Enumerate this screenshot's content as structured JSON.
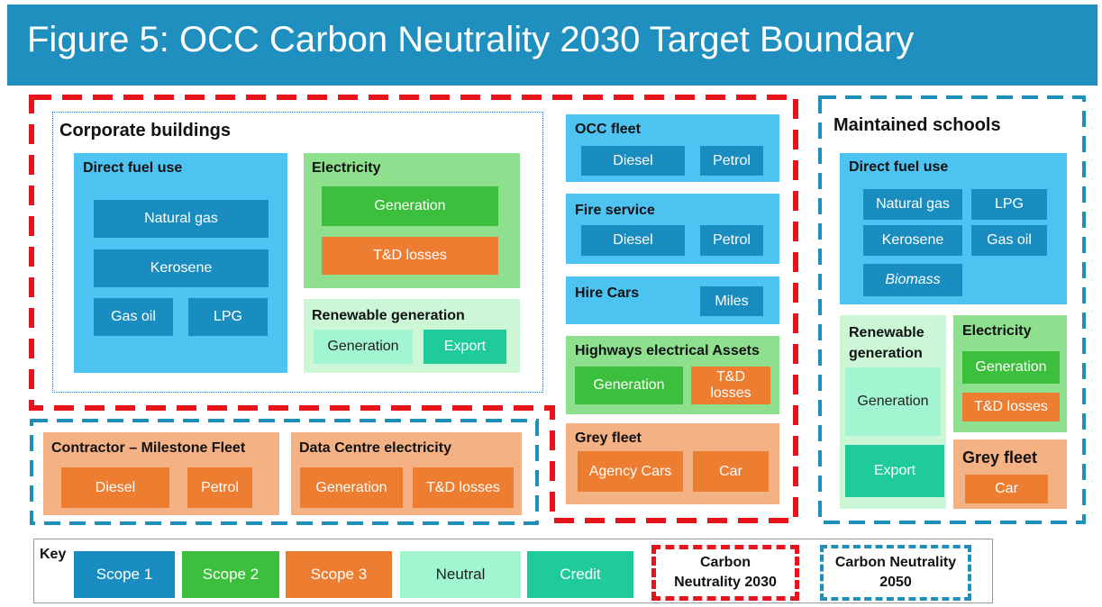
{
  "header": {
    "title": "Figure 5: OCC  Carbon Neutrality 2030 Target Boundary"
  },
  "corporate_buildings": {
    "title": "Corporate buildings",
    "direct_fuel_use": {
      "title": "Direct fuel use",
      "items": [
        "Natural gas",
        "Kerosene",
        "Gas oil",
        "LPG"
      ]
    },
    "electricity": {
      "title": "Electricity",
      "items": [
        "Generation",
        "T&D losses"
      ]
    },
    "renewable_generation": {
      "title": "Renewable generation",
      "items": [
        "Generation",
        "Export"
      ]
    }
  },
  "occ_fleet": {
    "title": "OCC fleet",
    "items": [
      "Diesel",
      "Petrol"
    ]
  },
  "fire_service": {
    "title": "Fire service",
    "items": [
      "Diesel",
      "Petrol"
    ]
  },
  "hire_cars": {
    "title": "Hire Cars",
    "items": [
      "Miles"
    ]
  },
  "highways_electrical_assets": {
    "title": "Highways electrical Assets",
    "items": [
      "Generation",
      "T&D losses"
    ]
  },
  "grey_fleet": {
    "title": "Grey fleet",
    "items": [
      "Agency Cars",
      "Car"
    ]
  },
  "contractor_fleet": {
    "title": "Contractor – Milestone Fleet",
    "items": [
      "Diesel",
      "Petrol"
    ]
  },
  "data_centre": {
    "title": "Data Centre electricity",
    "items": [
      "Generation",
      "T&D losses"
    ]
  },
  "maintained_schools": {
    "title": "Maintained schools",
    "direct_fuel_use": {
      "title": "Direct fuel use",
      "items": [
        "Natural gas",
        "LPG",
        "Kerosene",
        "Gas oil",
        "Biomass"
      ]
    },
    "renewable_generation": {
      "title": "Renewable generation",
      "items": [
        "Generation",
        "Export"
      ]
    },
    "electricity": {
      "title": "Electricity",
      "items": [
        "Generation",
        "T&D losses"
      ]
    },
    "grey_fleet": {
      "title": "Grey fleet",
      "items": [
        "Car"
      ]
    }
  },
  "key": {
    "title": "Key",
    "items": [
      "Scope 1",
      "Scope 2",
      "Scope 3",
      "Neutral",
      "Credit",
      "Carbon Neutrality 2030",
      "Carbon Neutrality 2050"
    ]
  }
}
